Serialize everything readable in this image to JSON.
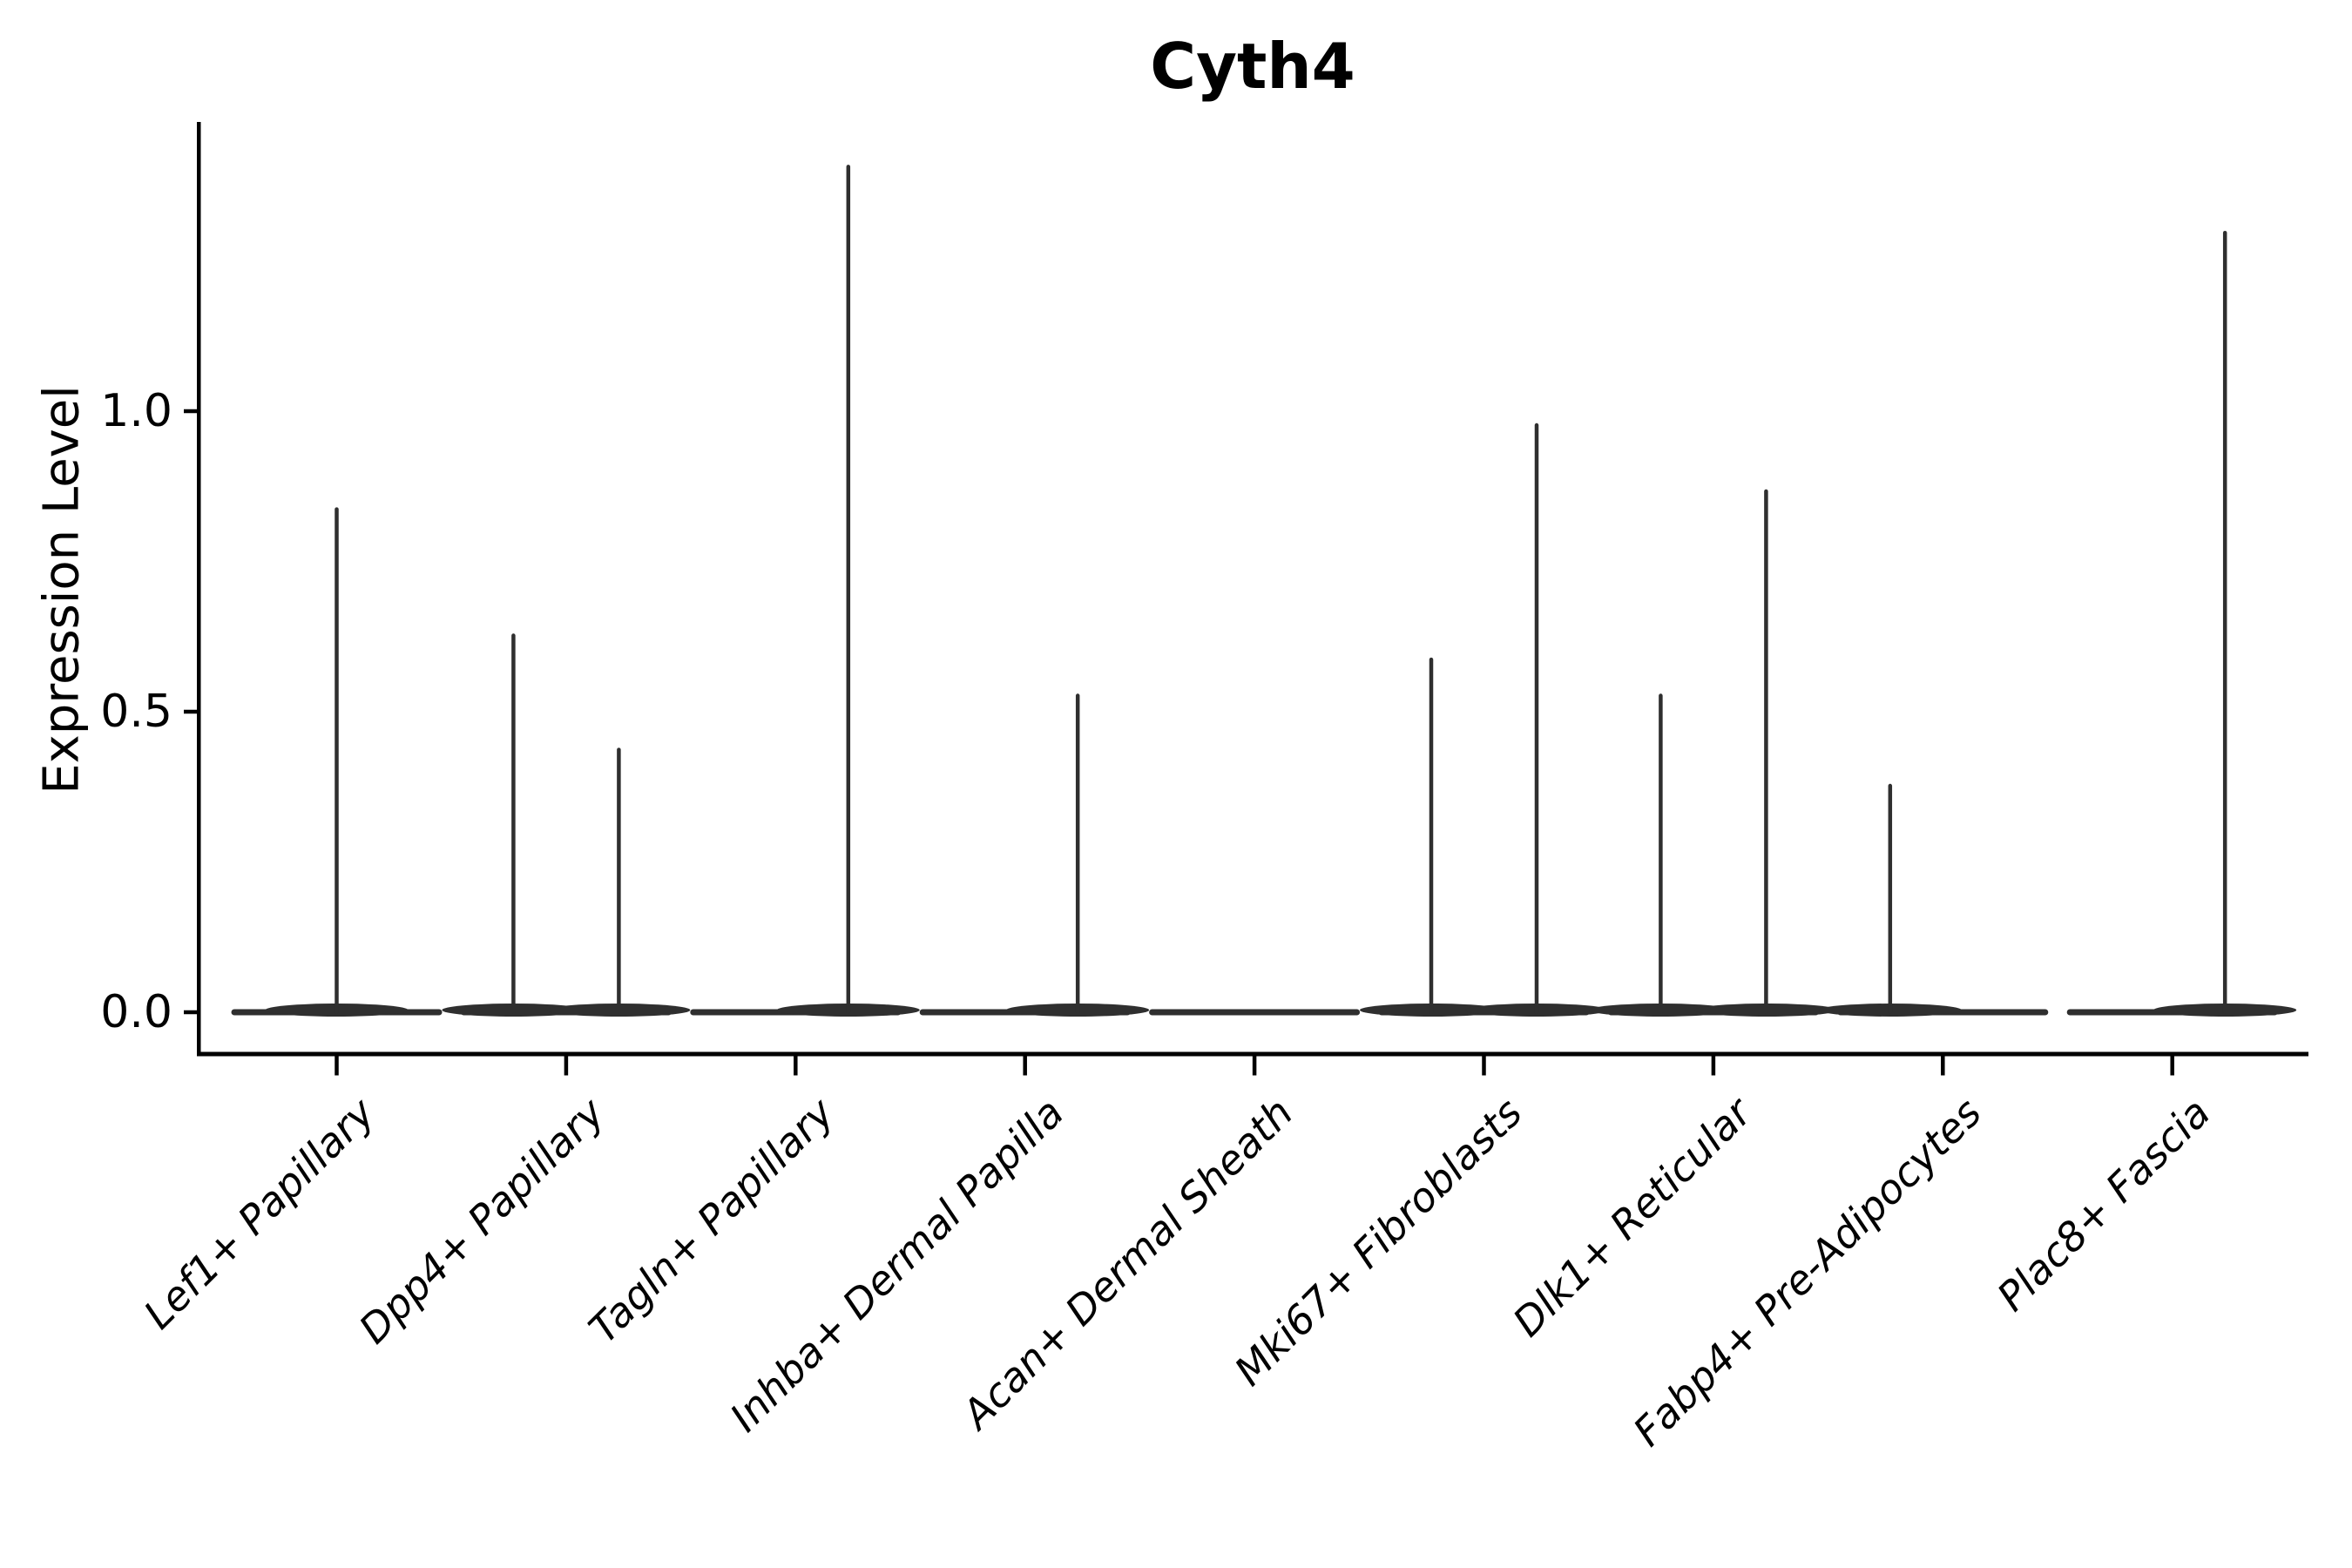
{
  "figure": {
    "title": "Cyth4",
    "ylabel": "Expression Level"
  },
  "chart_data": {
    "type": "violin",
    "title": "Cyth4",
    "xlabel": "",
    "ylabel": "Expression Level",
    "ytick_labels": [
      "0.0",
      "0.5",
      "1.0"
    ],
    "ytick_values": [
      0.0,
      0.5,
      1.0
    ],
    "ylim": [
      -0.07,
      1.48
    ],
    "grid": false,
    "legend": "none",
    "style_note": "Seurat-style VlnPlot: near-zero-width spike violins with flat density mass at 0, black axes, italic 45-degree x labels",
    "colors": {
      "spine": "#000000",
      "violin": "#2f2f2f",
      "text": "#000000",
      "background": "#ffffff"
    },
    "categories": [
      {
        "label": "Lef1+ Papillary",
        "violins": [
          {
            "pos": 0.5,
            "peak": 0.84
          }
        ]
      },
      {
        "label": "Dpp4+ Papillary",
        "violins": [
          {
            "pos": 0.25,
            "peak": 0.63
          },
          {
            "pos": 0.75,
            "peak": 0.44
          }
        ]
      },
      {
        "label": "Tagln+ Papillary",
        "violins": [
          {
            "pos": 0.75,
            "peak": 1.41
          }
        ]
      },
      {
        "label": "Inhba+ Dermal Papilla",
        "violins": [
          {
            "pos": 0.75,
            "peak": 0.53
          }
        ]
      },
      {
        "label": "Acan+ Dermal Sheath",
        "violins": []
      },
      {
        "label": "Mki67+ Fibroblasts",
        "violins": [
          {
            "pos": 0.25,
            "peak": 0.59
          },
          {
            "pos": 0.75,
            "peak": 0.98
          }
        ]
      },
      {
        "label": "Dlk1+ Reticular",
        "violins": [
          {
            "pos": 0.25,
            "peak": 0.53
          },
          {
            "pos": 0.75,
            "peak": 0.87
          }
        ]
      },
      {
        "label": "Fabp4+ Pre-Adipocytes",
        "violins": [
          {
            "pos": 0.25,
            "peak": 0.38
          }
        ]
      },
      {
        "label": "Plac8+ Fascia",
        "violins": [
          {
            "pos": 0.75,
            "peak": 1.3
          }
        ]
      }
    ],
    "note": "Every category also shows a flat horizontal density mass at expression level 0; 'peak' is the maximum expression reached by each thin violin spike, 'pos' is the spike position across the category slot (0.5 = centered single violin, 0.25/0.75 = left/right half violins)."
  }
}
